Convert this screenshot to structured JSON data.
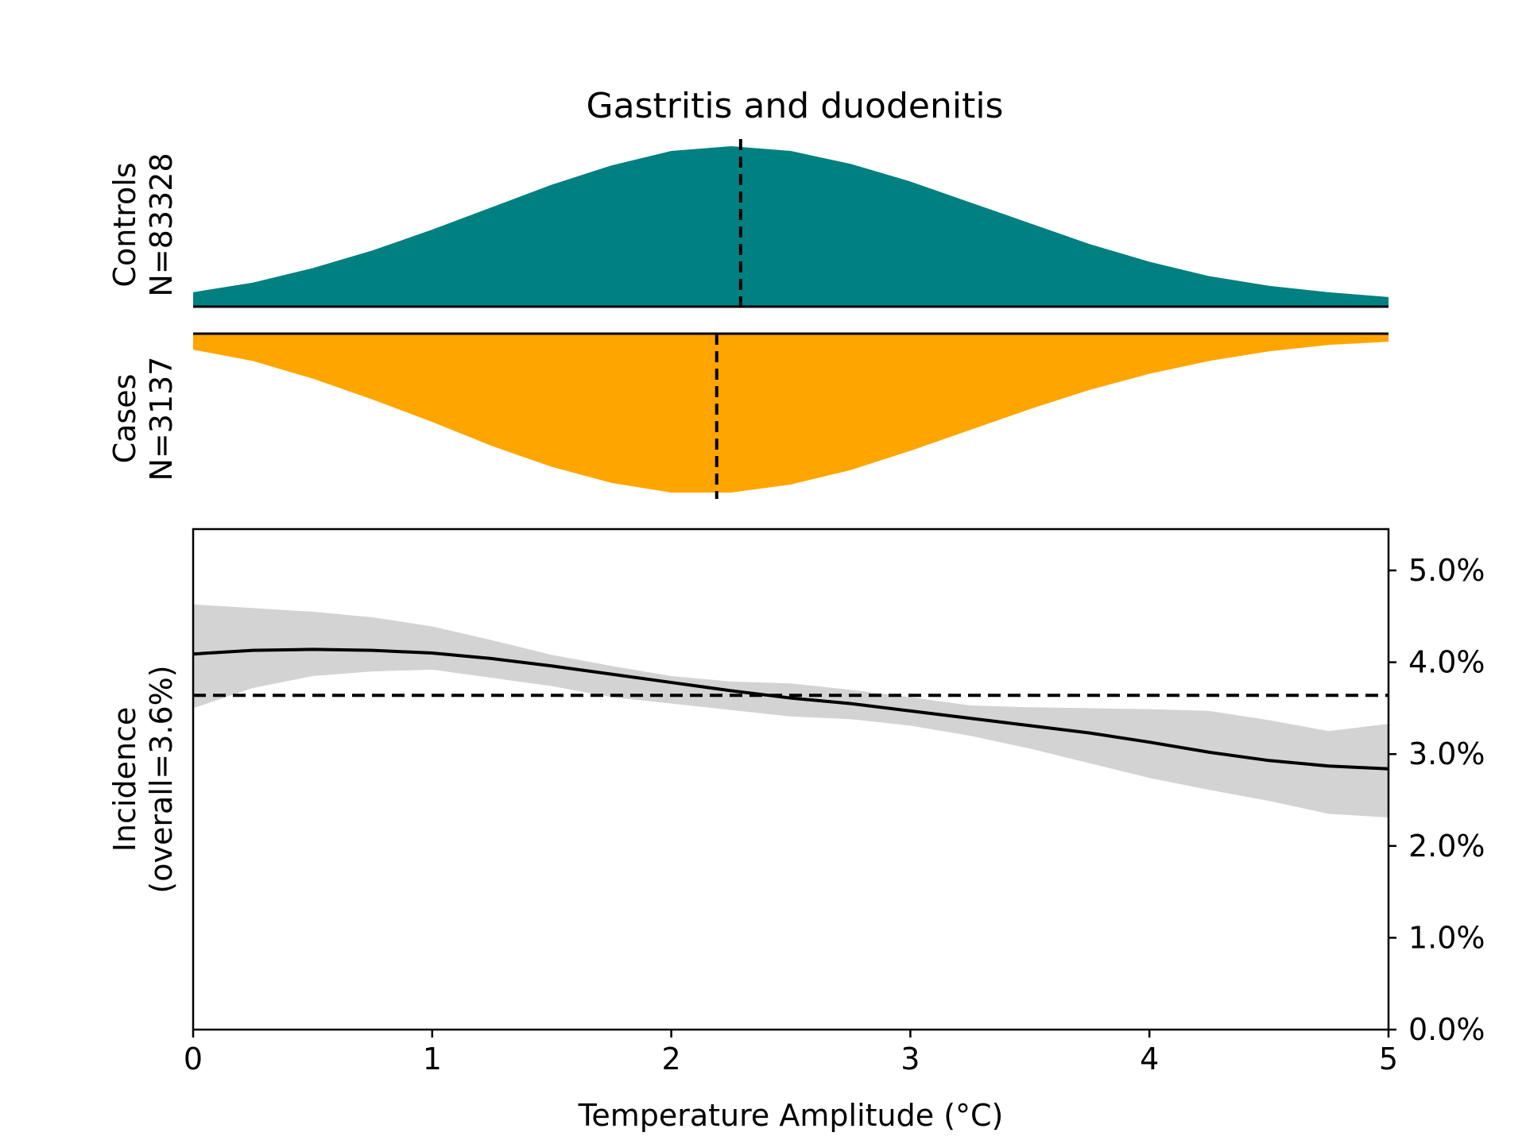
{
  "chart_data": {
    "type": "line",
    "title": "Gastritis and duodenitis",
    "xlabel": "Temperature Amplitude (°C)",
    "xlim": [
      0,
      5
    ],
    "x_ticks": [
      0,
      1,
      2,
      3,
      4,
      5
    ],
    "x_tick_labels": [
      "0",
      "1",
      "2",
      "3",
      "4",
      "5"
    ],
    "controls": {
      "label_line1": "Controls",
      "label_line2": "N=83328",
      "color": "#008080",
      "median": 2.29,
      "density": {
        "x": [
          0,
          0.25,
          0.5,
          0.75,
          1.0,
          1.25,
          1.5,
          1.75,
          2.0,
          2.25,
          2.5,
          2.75,
          3.0,
          3.25,
          3.5,
          3.75,
          4.0,
          4.25,
          4.5,
          4.75,
          5.0
        ],
        "y": [
          0.09,
          0.15,
          0.24,
          0.35,
          0.48,
          0.62,
          0.76,
          0.88,
          0.97,
          1.0,
          0.97,
          0.89,
          0.78,
          0.65,
          0.52,
          0.39,
          0.28,
          0.19,
          0.13,
          0.09,
          0.06
        ]
      }
    },
    "cases": {
      "label_line1": "Cases",
      "label_line2": "N=3137",
      "color": "#FFA500",
      "median": 2.19,
      "density": {
        "x": [
          0,
          0.25,
          0.5,
          0.75,
          1.0,
          1.25,
          1.5,
          1.75,
          2.0,
          2.25,
          2.5,
          2.75,
          3.0,
          3.25,
          3.5,
          3.75,
          4.0,
          4.25,
          4.5,
          4.75,
          5.0
        ],
        "y": [
          0.1,
          0.17,
          0.28,
          0.41,
          0.55,
          0.7,
          0.83,
          0.93,
          0.99,
          0.99,
          0.94,
          0.85,
          0.73,
          0.6,
          0.47,
          0.35,
          0.25,
          0.17,
          0.11,
          0.07,
          0.05
        ]
      }
    },
    "incidence": {
      "ylabel_line1": "Incidence",
      "ylabel_line2": "(overall=3.6%)",
      "overall": 3.64,
      "ylim": [
        0,
        5.45
      ],
      "y_ticks": [
        0,
        1,
        2,
        3,
        4,
        5
      ],
      "y_tick_labels": [
        "0.0%",
        "1.0%",
        "2.0%",
        "3.0%",
        "4.0%",
        "5.0%"
      ],
      "band_color": "#d3d3d3",
      "line": {
        "x": [
          0,
          0.25,
          0.5,
          0.75,
          1.0,
          1.25,
          1.5,
          1.75,
          2.0,
          2.25,
          2.5,
          2.75,
          3.0,
          3.25,
          3.5,
          3.75,
          4.0,
          4.25,
          4.5,
          4.75,
          5.0
        ],
        "y": [
          4.09,
          4.13,
          4.14,
          4.13,
          4.1,
          4.04,
          3.96,
          3.87,
          3.78,
          3.69,
          3.61,
          3.55,
          3.47,
          3.39,
          3.31,
          3.23,
          3.13,
          3.02,
          2.93,
          2.87,
          2.84
        ]
      },
      "upper": {
        "x": [
          0,
          0.25,
          0.5,
          0.75,
          1.0,
          1.25,
          1.5,
          1.75,
          2.0,
          2.25,
          2.5,
          2.75,
          3.0,
          3.25,
          3.5,
          3.75,
          4.0,
          4.25,
          4.5,
          4.75,
          5.0
        ],
        "y": [
          4.63,
          4.59,
          4.55,
          4.49,
          4.39,
          4.24,
          4.08,
          3.96,
          3.85,
          3.79,
          3.77,
          3.7,
          3.62,
          3.53,
          3.51,
          3.5,
          3.49,
          3.47,
          3.37,
          3.25,
          3.33
        ]
      },
      "lower": {
        "x": [
          0,
          0.25,
          0.5,
          0.75,
          1.0,
          1.25,
          1.5,
          1.75,
          2.0,
          2.25,
          2.5,
          2.75,
          3.0,
          3.25,
          3.5,
          3.75,
          4.0,
          4.25,
          4.5,
          4.75,
          5.0
        ],
        "y": [
          3.5,
          3.72,
          3.85,
          3.9,
          3.92,
          3.83,
          3.74,
          3.62,
          3.55,
          3.48,
          3.41,
          3.38,
          3.31,
          3.2,
          3.06,
          2.9,
          2.74,
          2.61,
          2.49,
          2.35,
          2.31
        ]
      }
    }
  }
}
